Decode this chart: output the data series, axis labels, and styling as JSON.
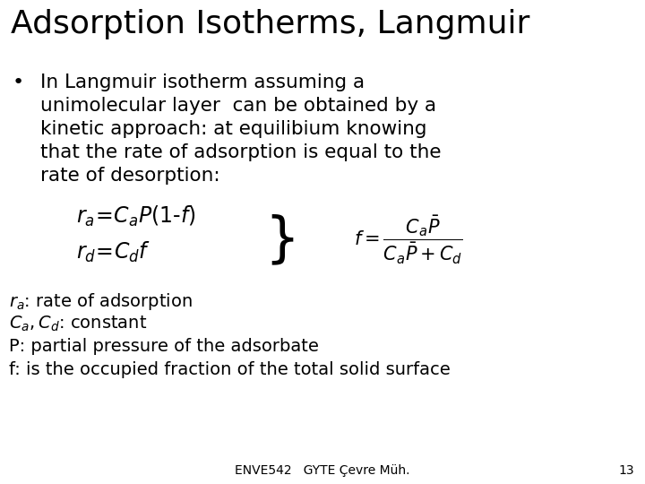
{
  "title": "Adsorption Isotherms, Langmuir",
  "background_color": "#ffffff",
  "text_color": "#000000",
  "title_fontsize": 26,
  "bullet_fontsize": 15.5,
  "eq_fontsize": 17,
  "note_fontsize": 14,
  "footer_fontsize": 10,
  "footer_text": "ENVE542   GYTE Çevre Müh.",
  "footer_page": "13",
  "bullet_lines": [
    "In Langmuir isotherm assuming a",
    "unimolecular layer  can be obtained by a",
    "kinetic approach: at equilibium knowing",
    "that the rate of adsorption is equal to the",
    "rate of desorption:"
  ]
}
